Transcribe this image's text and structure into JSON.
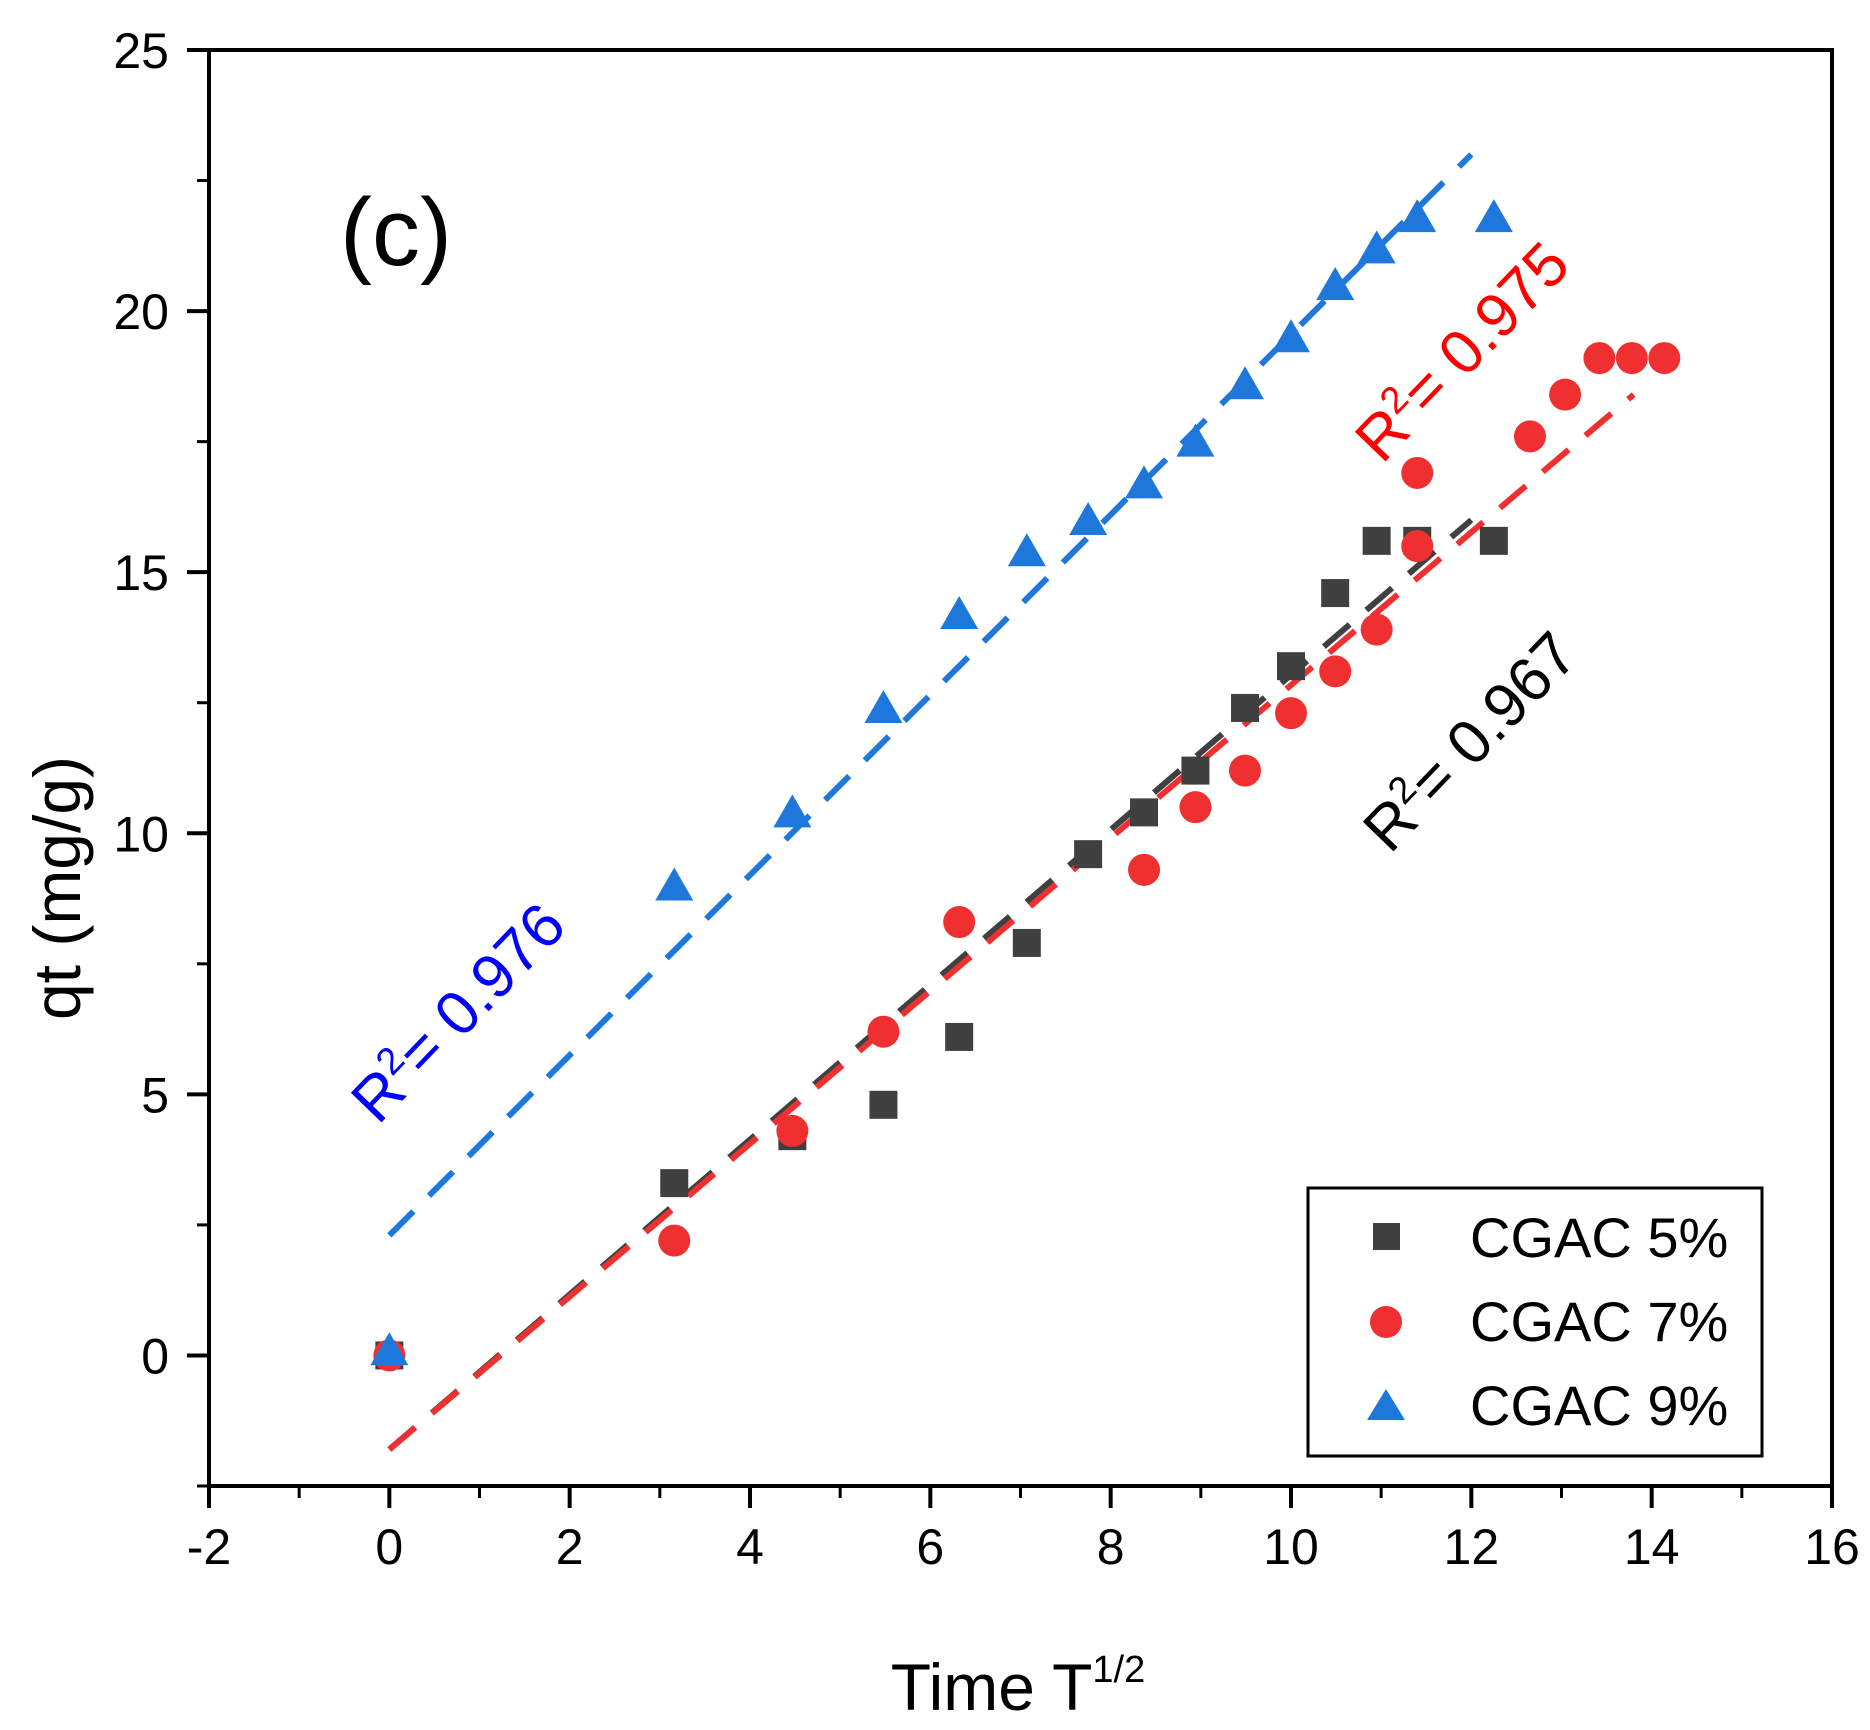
{
  "chart_data": {
    "type": "scatter",
    "panel_label": "(c)",
    "xlabel": "Time T",
    "xlabel_superscript": "1/2",
    "ylabel": "qt (mg/g)",
    "xlim": [
      -2,
      16
    ],
    "ylim": [
      -2.5,
      25
    ],
    "xticks": [
      -2,
      0,
      2,
      4,
      6,
      8,
      10,
      12,
      14,
      16
    ],
    "yticks": [
      0,
      5,
      10,
      15,
      20,
      25
    ],
    "colors": {
      "s5": "#404040",
      "s7": "#f03030",
      "s9": "#1e78dc",
      "r2_9": "#0000ff",
      "r2_7": "#ff0000",
      "r2_5": "#000000"
    },
    "series": [
      {
        "name": "CGAC 5%",
        "marker": "square",
        "x": [
          0,
          3.16,
          4.47,
          5.48,
          6.32,
          7.07,
          7.75,
          8.37,
          8.94,
          9.49,
          10.0,
          10.49,
          10.95,
          11.4,
          12.25
        ],
        "y": [
          0,
          3.3,
          4.2,
          4.8,
          6.1,
          7.9,
          9.6,
          10.4,
          11.2,
          12.4,
          13.2,
          14.6,
          15.6,
          15.6,
          15.6
        ],
        "fit": {
          "x": [
            0,
            12.0
          ],
          "y": [
            -1.8,
            16.0
          ]
        },
        "r2_label": "R",
        "r2_sup": "2",
        "r2_value": "= 0.967"
      },
      {
        "name": "CGAC 7%",
        "marker": "circle",
        "x": [
          0,
          3.16,
          4.47,
          5.48,
          6.32,
          8.37,
          8.94,
          9.49,
          10.0,
          10.49,
          10.95,
          11.4,
          11.4,
          12.65,
          13.04,
          13.42,
          13.78,
          14.14
        ],
        "y": [
          0,
          2.2,
          4.3,
          6.2,
          8.3,
          9.3,
          10.5,
          11.2,
          12.3,
          13.1,
          13.9,
          15.5,
          16.9,
          17.6,
          18.4,
          19.1,
          19.1,
          19.1
        ],
        "fit": {
          "x": [
            0,
            13.8
          ],
          "y": [
            -1.8,
            18.4
          ]
        },
        "r2_label": "R",
        "r2_sup": "2",
        "r2_value": "= 0.975"
      },
      {
        "name": "CGAC 9%",
        "marker": "triangle",
        "x": [
          0,
          3.16,
          4.47,
          5.48,
          6.32,
          7.07,
          7.75,
          8.37,
          8.94,
          9.49,
          10.0,
          10.49,
          10.95,
          11.4,
          12.25
        ],
        "y": [
          0.1,
          9.0,
          10.4,
          12.4,
          14.2,
          15.4,
          16.0,
          16.7,
          17.5,
          18.6,
          19.5,
          20.5,
          21.2,
          21.8,
          21.8
        ],
        "fit": {
          "x": [
            0,
            12.0
          ],
          "y": [
            2.3,
            23.0
          ]
        },
        "r2_label": "R",
        "r2_sup": "2",
        "r2_value": "= 0.976"
      }
    ]
  }
}
